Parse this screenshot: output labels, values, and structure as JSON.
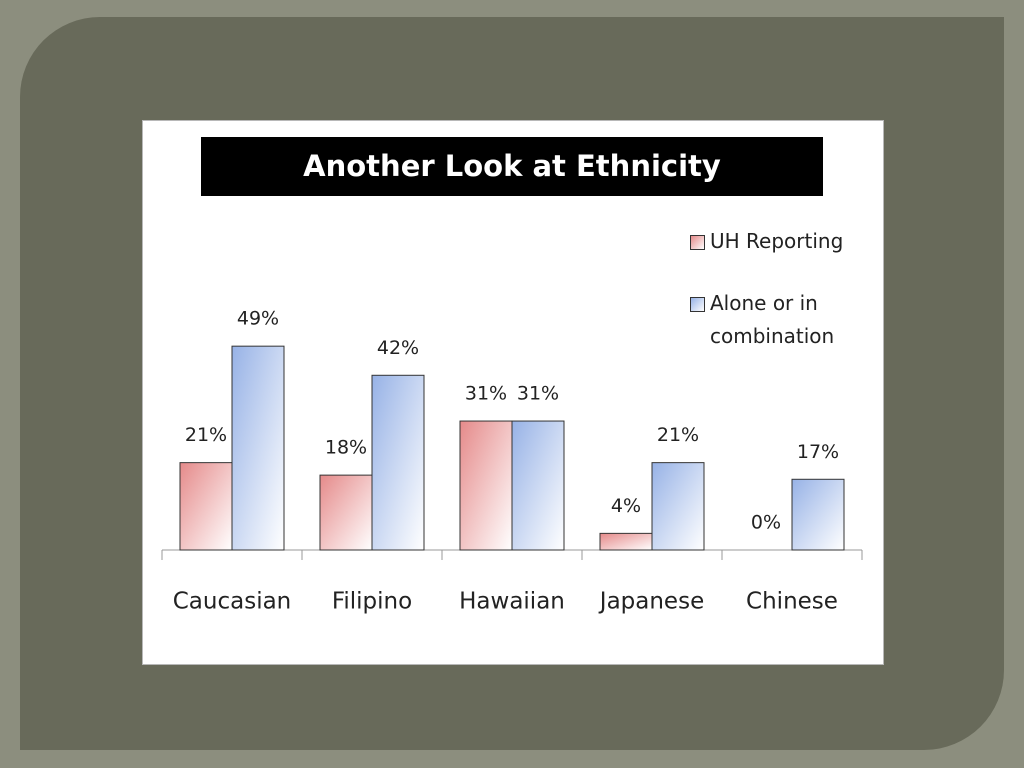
{
  "chart_data": {
    "type": "bar",
    "title": "Another Look at Ethnicity",
    "categories": [
      "Caucasian",
      "Filipino",
      "Hawaiian",
      "Japanese",
      "Chinese"
    ],
    "series": [
      {
        "name": "UH Reporting",
        "color": "#e58a8a",
        "values": [
          21,
          18,
          31,
          4,
          0
        ],
        "value_labels": [
          "21%",
          "18%",
          "31%",
          "4%",
          "0%"
        ]
      },
      {
        "name": "Alone or in combination",
        "color": "#97b2e6",
        "values": [
          49,
          42,
          31,
          21,
          17
        ],
        "value_labels": [
          "49%",
          "42%",
          "31%",
          "21%",
          "17%"
        ]
      }
    ]
  }
}
